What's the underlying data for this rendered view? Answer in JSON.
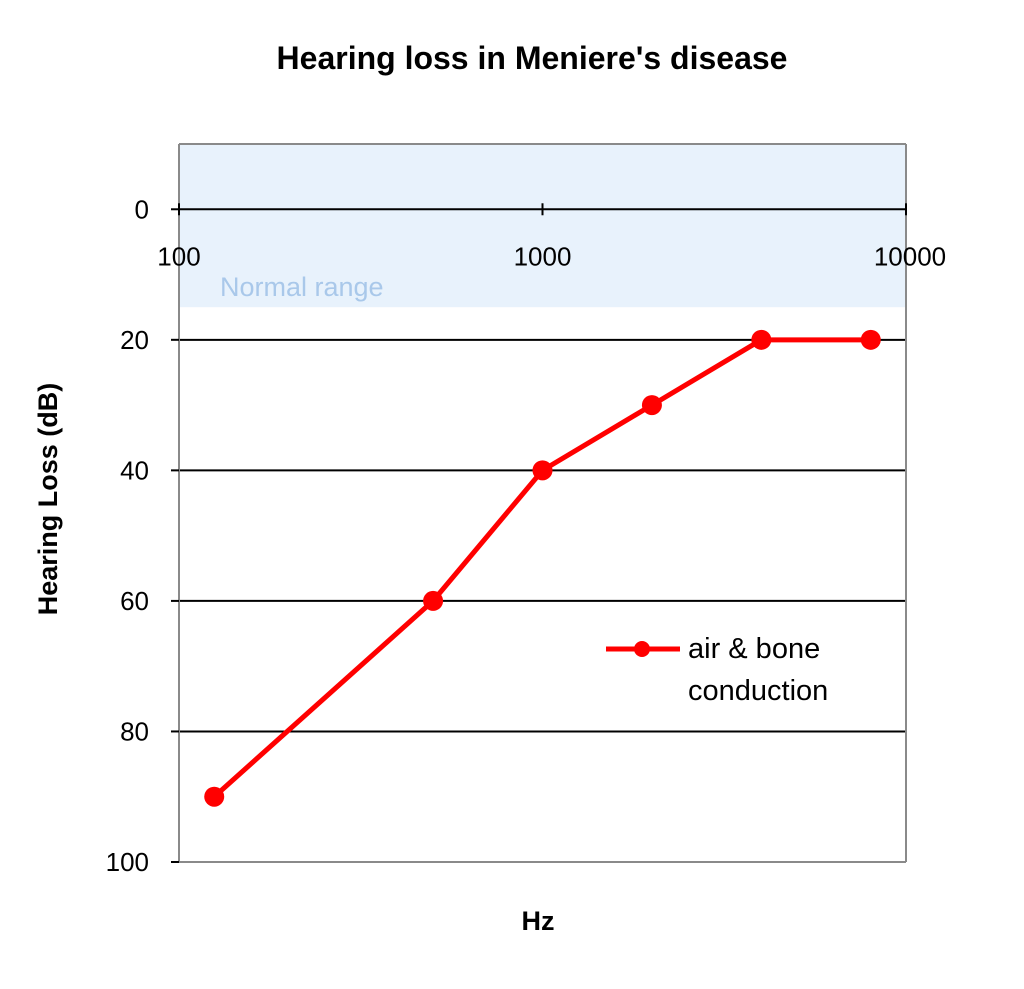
{
  "chart_data": {
    "type": "line",
    "title": "Hearing loss in Meniere's disease",
    "xlabel": "Hz",
    "ylabel": "Hearing Loss (dB)",
    "x_scale": "log",
    "x_ticks": [
      "100",
      "1000",
      "10000"
    ],
    "x_tick_values": [
      100,
      1000,
      10000
    ],
    "y_ticks": [
      "0",
      "20",
      "40",
      "60",
      "80",
      "100"
    ],
    "y_tick_values": [
      0,
      20,
      40,
      60,
      80,
      100
    ],
    "ylim": [
      -10,
      100
    ],
    "y_inverted": true,
    "grid": true,
    "normal_range": {
      "label": "Normal range",
      "from": -10,
      "to": 15,
      "color": "#e8f2fc",
      "text_color": "#a9c8ea"
    },
    "legend": {
      "position": "right"
    },
    "series": [
      {
        "name": "air & bone conduction",
        "color": "#ff0000",
        "x": [
          125,
          500,
          1000,
          2000,
          4000,
          8000
        ],
        "y": [
          90,
          60,
          40,
          30,
          20,
          20
        ]
      }
    ]
  }
}
